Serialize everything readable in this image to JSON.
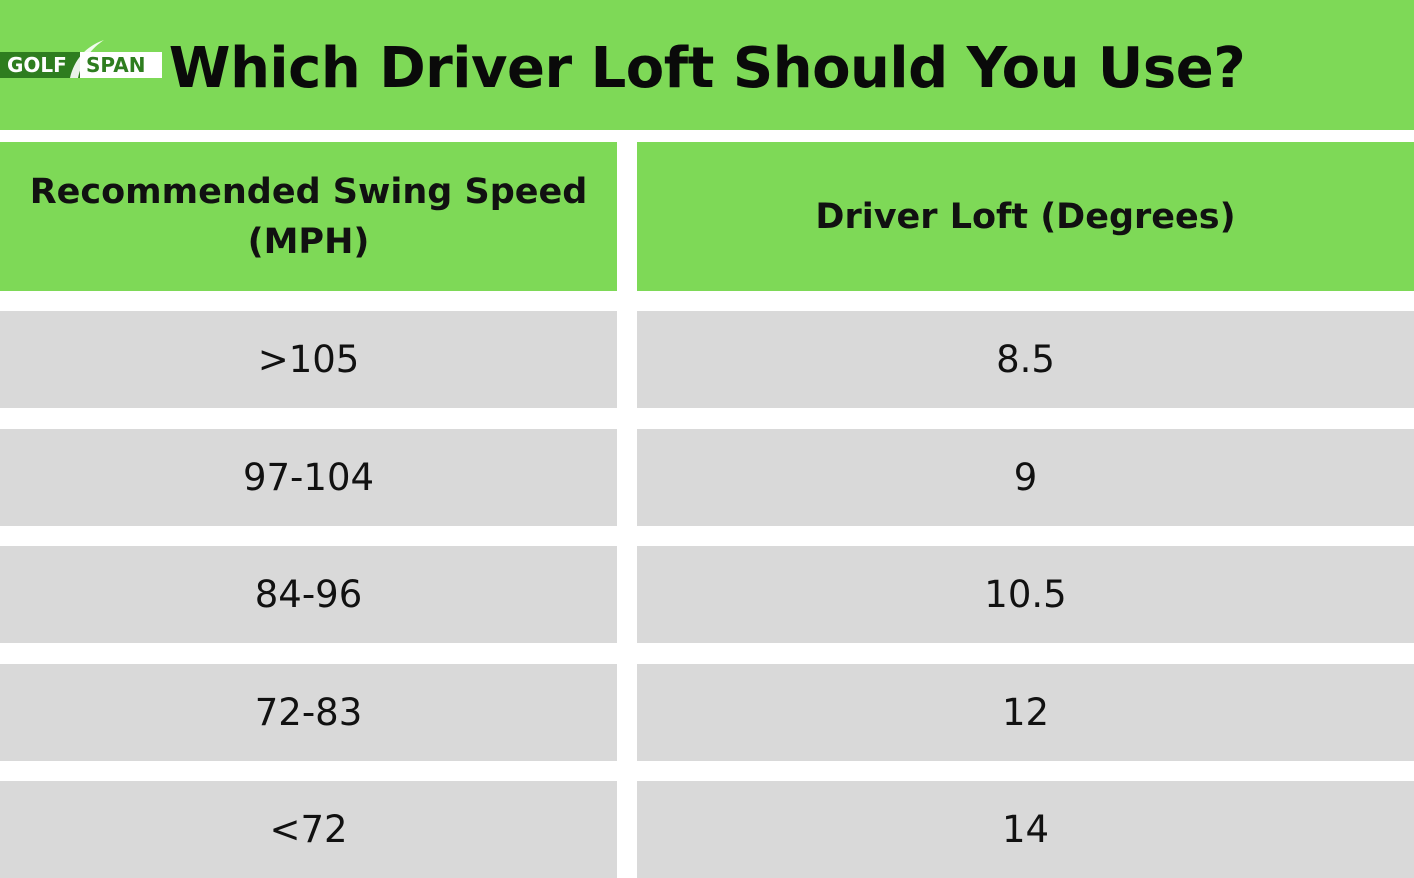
{
  "logo": {
    "text": "GOLF SPAN",
    "part1": "GOLF",
    "part2": "SPAN"
  },
  "colors": {
    "accent_green": "#7ED957",
    "row_gray": "#D9D9D9",
    "text": "#111111"
  },
  "chart_data": {
    "type": "table",
    "title": "Which Driver Loft Should You Use?",
    "columns": [
      "Recommended Swing Speed (MPH)",
      "Driver Loft (Degrees)"
    ],
    "header_lines": {
      "swing_line1": "Recommended Swing Speed",
      "swing_line2": "(MPH)",
      "loft": "Driver Loft (Degrees)"
    },
    "rows": [
      {
        "swing_speed": ">105",
        "loft": "8.5"
      },
      {
        "swing_speed": "97-104",
        "loft": "9"
      },
      {
        "swing_speed": "84-96",
        "loft": "10.5"
      },
      {
        "swing_speed": "72-83",
        "loft": "12"
      },
      {
        "swing_speed": "<72",
        "loft": "14"
      }
    ]
  }
}
